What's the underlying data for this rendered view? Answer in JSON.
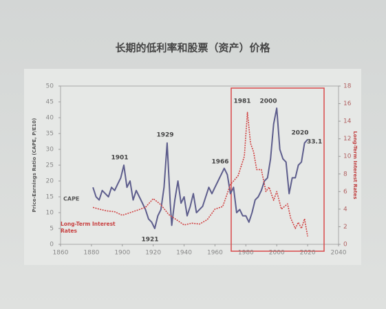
{
  "chart_data": {
    "type": "line",
    "title": "长期的低利率和股票（资产）价格",
    "y_label": "Price-Earnings Ratio (CAPE, P/E10)",
    "y2_label": "Long-Term Interest Rates",
    "xlim": [
      1860,
      2040
    ],
    "xticks": [
      1860,
      1880,
      1900,
      1920,
      1940,
      1960,
      1980,
      2000,
      2020,
      2040
    ],
    "ylim": [
      0,
      50
    ],
    "yticks": [
      0,
      5,
      10,
      15,
      20,
      25,
      30,
      35,
      40,
      45,
      50
    ],
    "y2lim": [
      0,
      18
    ],
    "y2ticks": [
      0,
      2,
      4,
      6,
      8,
      10,
      12,
      14,
      16,
      18
    ],
    "grid": false,
    "series": [
      {
        "name": "CAPE",
        "color": "#5d5d8c",
        "dashed": false,
        "x": [
          1881,
          1883,
          1885,
          1887,
          1889,
          1891,
          1893,
          1895,
          1897,
          1899,
          1901,
          1903,
          1905,
          1907,
          1909,
          1911,
          1913,
          1915,
          1917,
          1919,
          1921,
          1923,
          1925,
          1927,
          1929,
          1931,
          1932,
          1934,
          1936,
          1938,
          1940,
          1942,
          1944,
          1946,
          1948,
          1950,
          1952,
          1954,
          1956,
          1958,
          1960,
          1962,
          1964,
          1966,
          1968,
          1970,
          1972,
          1974,
          1976,
          1978,
          1980,
          1982,
          1984,
          1986,
          1988,
          1990,
          1992,
          1994,
          1996,
          1998,
          2000,
          2002,
          2004,
          2006,
          2008,
          2010,
          2012,
          2014,
          2016,
          2018,
          2020
        ],
        "values": [
          18,
          15,
          14,
          17,
          16,
          15,
          18,
          17,
          19,
          21,
          25,
          18,
          20,
          14,
          17,
          15,
          13,
          11,
          8,
          7,
          5,
          9,
          11,
          18,
          32,
          13,
          6,
          14,
          20,
          13,
          15,
          9,
          12,
          16,
          10,
          11,
          12,
          15,
          18,
          16,
          18,
          20,
          22,
          24,
          22,
          16,
          18,
          10,
          11,
          9,
          9,
          7,
          10,
          14,
          15,
          17,
          20,
          21,
          27,
          38,
          43,
          30,
          27,
          26,
          16,
          21,
          21,
          25,
          26,
          32,
          33.1
        ]
      },
      {
        "name": "Long-Term Interest Rates",
        "color": "#d04040",
        "dashed": true,
        "axis": "y2",
        "x": [
          1881,
          1885,
          1890,
          1895,
          1900,
          1905,
          1910,
          1915,
          1920,
          1925,
          1930,
          1935,
          1940,
          1945,
          1950,
          1955,
          1960,
          1965,
          1970,
          1975,
          1979,
          1981,
          1983,
          1985,
          1987,
          1990,
          1993,
          1995,
          1998,
          2000,
          2003,
          2007,
          2009,
          2012,
          2014,
          2016,
          2018,
          2020
        ],
        "values": [
          4.2,
          4.0,
          3.8,
          3.7,
          3.3,
          3.6,
          3.9,
          4.2,
          5.2,
          4.5,
          3.4,
          2.8,
          2.2,
          2.4,
          2.3,
          2.8,
          4.0,
          4.3,
          6.8,
          7.8,
          10,
          15,
          11.5,
          10.5,
          8.5,
          8.5,
          6,
          6.5,
          5,
          6,
          4,
          4.6,
          3,
          1.8,
          2.5,
          1.8,
          2.9,
          0.9
        ]
      }
    ],
    "annotations": [
      "1901",
      "1929",
      "1921",
      "1966",
      "1981",
      "2000",
      "2020",
      "33.1"
    ]
  }
}
